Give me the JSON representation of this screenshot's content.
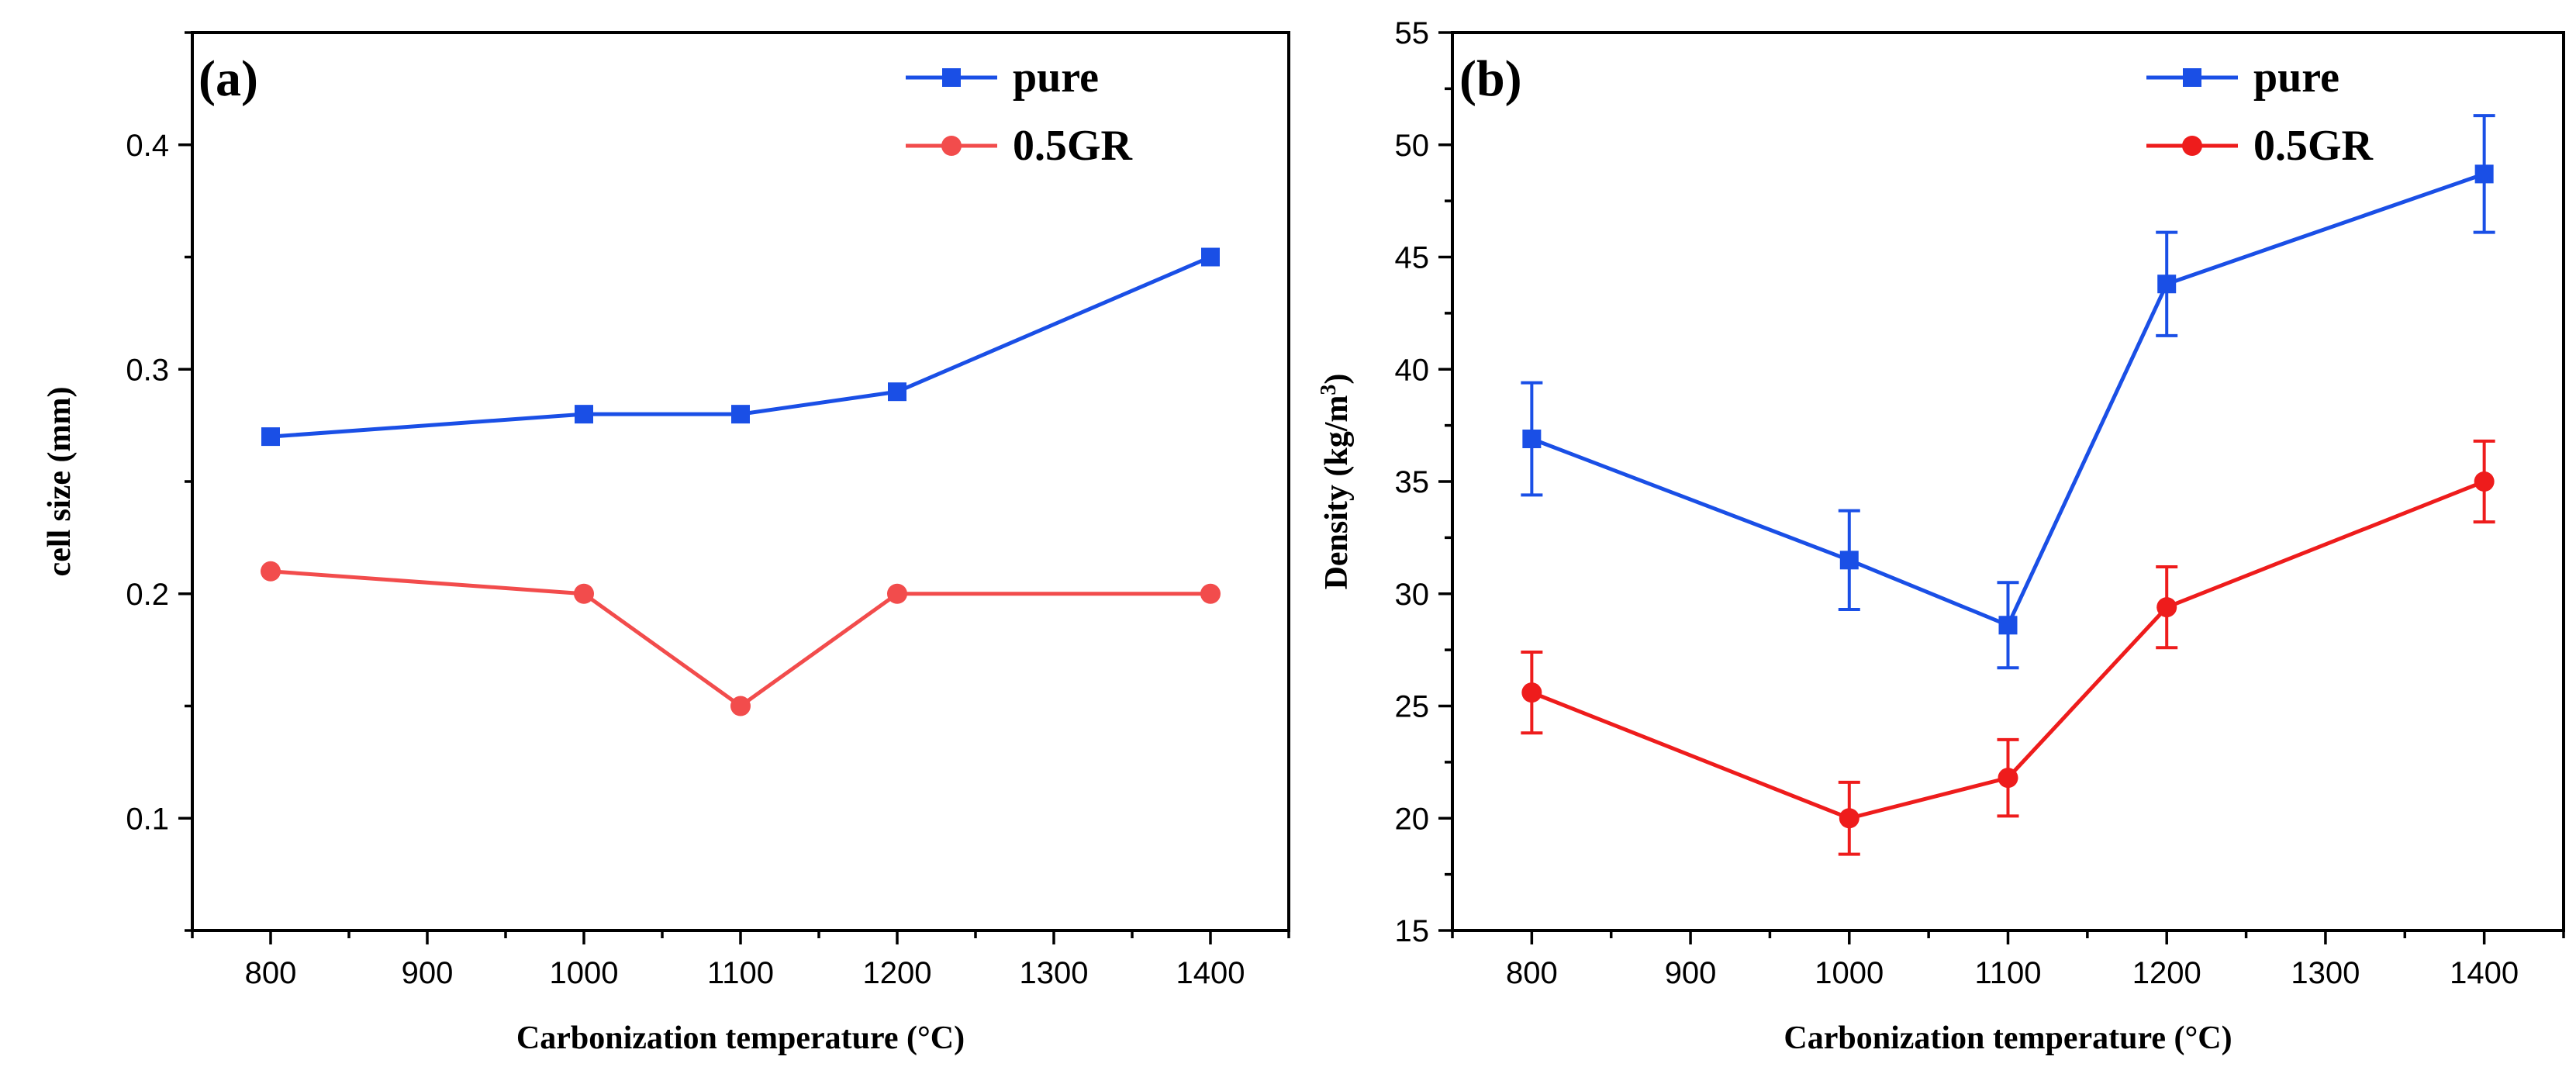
{
  "chart_data": [
    {
      "type": "line",
      "panel_label": "(a)",
      "xlabel": "Carbonization temperature (°C)",
      "ylabel": "cell size (mm)",
      "xlim": [
        750,
        1450
      ],
      "ylim": [
        0.05,
        0.45
      ],
      "xticks": [
        800,
        900,
        1000,
        1100,
        1200,
        1300,
        1400
      ],
      "yticks": [
        0.1,
        0.2,
        0.3,
        0.4
      ],
      "grid": false,
      "legend_position": "top-right",
      "series": [
        {
          "name": "pure",
          "color": "#1a4fe6",
          "marker": "square",
          "x": [
            800,
            1000,
            1100,
            1200,
            1400
          ],
          "y": [
            0.27,
            0.28,
            0.28,
            0.29,
            0.35
          ]
        },
        {
          "name": "0.5GR",
          "color": "#f24c4c",
          "marker": "circle",
          "x": [
            800,
            1000,
            1100,
            1200,
            1400
          ],
          "y": [
            0.21,
            0.2,
            0.15,
            0.2,
            0.2
          ]
        }
      ]
    },
    {
      "type": "line",
      "panel_label": "(b)",
      "xlabel": "Carbonization temperature (°C)",
      "ylabel": "Density (kg/m",
      "ylabel_sup": "3",
      "ylabel_end": ")",
      "xlim": [
        750,
        1450
      ],
      "ylim": [
        15,
        55
      ],
      "xticks": [
        800,
        900,
        1000,
        1100,
        1200,
        1300,
        1400
      ],
      "yticks": [
        15,
        20,
        25,
        30,
        35,
        40,
        45,
        50,
        55
      ],
      "grid": false,
      "legend_position": "top-right",
      "series": [
        {
          "name": "pure",
          "color": "#1a4fe6",
          "marker": "square",
          "x": [
            800,
            1000,
            1100,
            1200,
            1400
          ],
          "y": [
            36.9,
            31.5,
            28.6,
            43.8,
            48.7
          ],
          "err": [
            2.5,
            2.2,
            1.9,
            2.3,
            2.6
          ]
        },
        {
          "name": "0.5GR",
          "color": "#ee1c1c",
          "marker": "circle",
          "x": [
            800,
            1000,
            1100,
            1200,
            1400
          ],
          "y": [
            25.6,
            20.0,
            21.8,
            29.4,
            35.0
          ],
          "err": [
            1.8,
            1.6,
            1.7,
            1.8,
            1.8
          ]
        }
      ]
    }
  ]
}
